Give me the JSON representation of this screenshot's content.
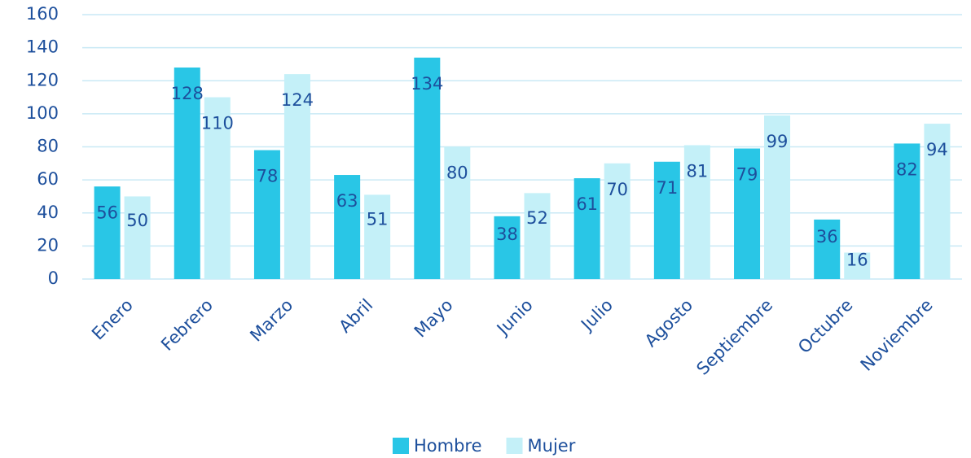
{
  "chart_data": {
    "type": "bar",
    "categories": [
      "Enero",
      "Febrero",
      "Marzo",
      "Abril",
      "Mayo",
      "Junio",
      "Julio",
      "Agosto",
      "Septiembre",
      "Octubre",
      "Noviembre"
    ],
    "series": [
      {
        "name": "Hombre",
        "color": "#29c6e6",
        "values": [
          56,
          128,
          78,
          63,
          134,
          38,
          61,
          71,
          79,
          36,
          82
        ]
      },
      {
        "name": "Mujer",
        "color": "#c4f0f8",
        "values": [
          50,
          110,
          124,
          51,
          80,
          52,
          70,
          81,
          99,
          16,
          94
        ]
      }
    ],
    "ylim": [
      0,
      160
    ],
    "yticks": [
      0,
      20,
      40,
      60,
      80,
      100,
      120,
      140,
      160
    ],
    "grid": true,
    "legend": "bottom"
  }
}
